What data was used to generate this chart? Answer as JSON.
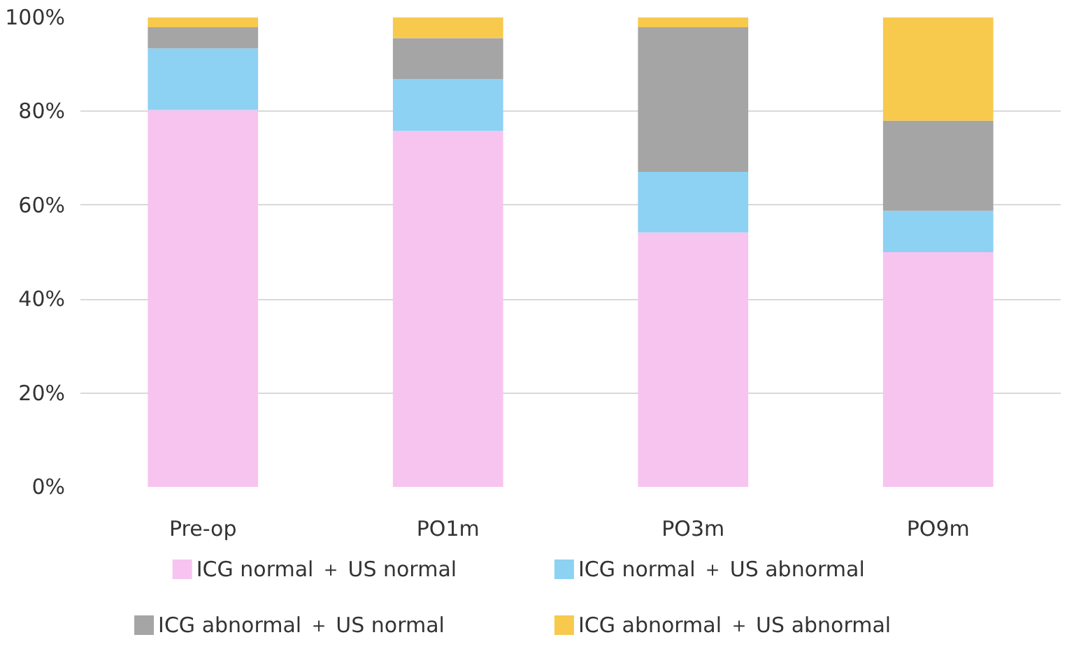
{
  "chart_data": {
    "type": "bar",
    "stacked": true,
    "categories": [
      "Pre-op",
      "PO1m",
      "PO3m",
      "PO9m"
    ],
    "series": [
      {
        "name": "ICG normal ＋ US normal",
        "color": "#f7c4f0",
        "values": [
          80.3,
          75.8,
          54.2,
          50
        ]
      },
      {
        "name": "ICG normal ＋ US abnormal",
        "color": "#8dd1f3",
        "values": [
          13.1,
          11.1,
          12.9,
          8.8
        ]
      },
      {
        "name": "ICG abnormal ＋ US normal",
        "color": "#a5a5a5",
        "values": [
          4.5,
          8.7,
          30.8,
          19.2
        ]
      },
      {
        "name": "ICG abnormal ＋ US abnormal",
        "color": "#f7c94d",
        "values": [
          2.1,
          4.4,
          2.1,
          22
        ]
      }
    ],
    "ylim": [
      0,
      100
    ],
    "yticks": [
      {
        "value": 0,
        "label": "0%"
      },
      {
        "value": 20,
        "label": "20%"
      },
      {
        "value": 40,
        "label": "40%"
      },
      {
        "value": 60,
        "label": "60%"
      },
      {
        "value": 80,
        "label": "80%"
      },
      {
        "value": 100,
        "label": "100%"
      }
    ],
    "grid": "y",
    "legend": "bottom"
  }
}
